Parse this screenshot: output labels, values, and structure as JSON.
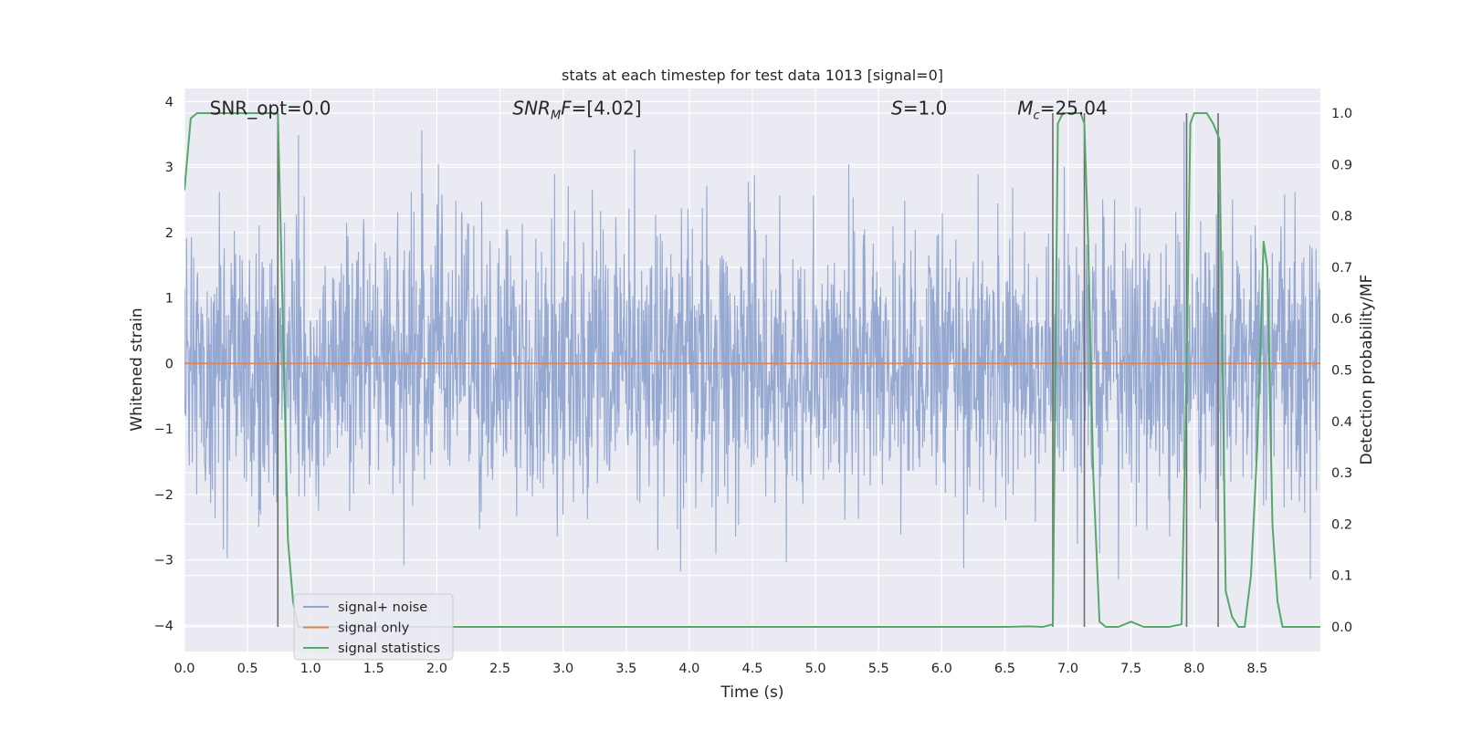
{
  "chart_data": {
    "type": "line",
    "title": "stats at each timestep for test data 1013 [signal=0]",
    "xlabel": "Time (s)",
    "ylabel_left": "Whitened strain",
    "ylabel_right": "Detection probability/MF",
    "xlim": [
      0.0,
      9.0
    ],
    "ylim_left": [
      -4.4,
      4.2
    ],
    "ylim_right": [
      -0.048,
      1.048
    ],
    "x_ticks": [
      "0.0",
      "0.5",
      "1.0",
      "1.5",
      "2.0",
      "2.5",
      "3.0",
      "3.5",
      "4.0",
      "4.5",
      "5.0",
      "5.5",
      "6.0",
      "6.5",
      "7.0",
      "7.5",
      "8.0",
      "8.5"
    ],
    "y_left_ticks": [
      "−4",
      "−3",
      "−2",
      "−1",
      "0",
      "1",
      "2",
      "3",
      "4"
    ],
    "y_right_ticks": [
      "0.0",
      "0.1",
      "0.2",
      "0.3",
      "0.4",
      "0.5",
      "0.6",
      "0.7",
      "0.8",
      "0.9",
      "1.0"
    ],
    "grid": true,
    "legend_position": "lower-left",
    "annotations": [
      {
        "text": "SNR_opt=0.0",
        "x": 0.2,
        "y": 3.9
      },
      {
        "text": "SNR_MF=[4.02]",
        "x": 2.6,
        "y": 3.9
      },
      {
        "text": "S=1.0",
        "x": 5.6,
        "y": 3.9
      },
      {
        "text": "M_c=25.04",
        "x": 6.6,
        "y": 3.9
      }
    ],
    "series": [
      {
        "name": "signal+ noise",
        "color": "#8fa4cf",
        "axis": "left",
        "description_range": [
          -3.3,
          3.8
        ]
      },
      {
        "name": "signal only",
        "color": "#dd8452",
        "axis": "left",
        "x": [
          0.0,
          9.0
        ],
        "y": [
          0.0,
          0.0
        ]
      },
      {
        "name": "signal statistics",
        "color": "#55a868",
        "axis": "right",
        "x": [
          0.0,
          0.05,
          0.1,
          0.2,
          0.3,
          0.4,
          0.5,
          0.6,
          0.7,
          0.74,
          0.78,
          0.82,
          0.86,
          0.9,
          1.0,
          2.0,
          3.0,
          4.0,
          5.0,
          6.0,
          6.5,
          6.7,
          6.8,
          6.88,
          6.92,
          6.96,
          7.0,
          7.05,
          7.1,
          7.13,
          7.16,
          7.2,
          7.25,
          7.3,
          7.4,
          7.5,
          7.6,
          7.7,
          7.8,
          7.9,
          7.94,
          7.97,
          8.0,
          8.05,
          8.1,
          8.15,
          8.2,
          8.25,
          8.3,
          8.35,
          8.4,
          8.45,
          8.5,
          8.55,
          8.58,
          8.62,
          8.66,
          8.7,
          8.75,
          8.8,
          8.9,
          9.0
        ],
        "y": [
          0.85,
          0.99,
          1.0,
          1.0,
          1.0,
          1.0,
          1.0,
          1.0,
          1.0,
          1.0,
          0.6,
          0.17,
          0.05,
          0.0,
          0.0,
          0.0,
          0.0,
          0.0,
          0.0,
          0.0,
          0.0,
          0.001,
          0.0,
          0.005,
          0.98,
          1.0,
          1.0,
          1.0,
          1.0,
          0.98,
          0.75,
          0.3,
          0.01,
          0.0,
          0.0,
          0.01,
          0.0,
          0.0,
          0.0,
          0.005,
          0.5,
          0.98,
          1.0,
          1.0,
          1.0,
          0.98,
          0.95,
          0.07,
          0.02,
          0.0,
          0.0,
          0.1,
          0.35,
          0.75,
          0.7,
          0.2,
          0.05,
          0.0,
          0.0,
          0.0,
          0.0,
          0.0
        ]
      }
    ],
    "vertical_lines": [
      0.74,
      6.88,
      7.13,
      7.94,
      8.19
    ],
    "vertical_line_color": "#6e6e6e"
  },
  "legend": {
    "items": [
      {
        "label": "signal+ noise",
        "color": "#8fa4cf"
      },
      {
        "label": "signal only",
        "color": "#dd8452"
      },
      {
        "label": "signal statistics",
        "color": "#55a868"
      }
    ]
  },
  "style": {
    "plot_background": "#eaeaf2",
    "grid_color": "#ffffff"
  }
}
